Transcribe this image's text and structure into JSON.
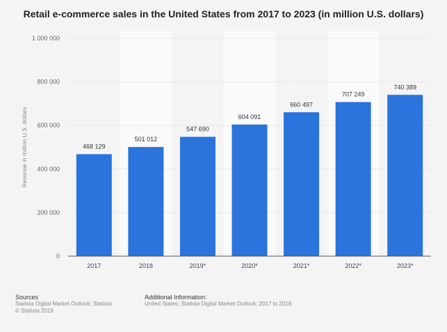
{
  "chart_data": {
    "type": "bar",
    "title": "Retail e-commerce sales in the United States from 2017 to 2023 (in million U.S. dollars)",
    "xlabel": "",
    "ylabel": "Revenue in million U.S. dollars",
    "categories": [
      "2017",
      "2018",
      "2019*",
      "2020*",
      "2021*",
      "2022*",
      "2023*"
    ],
    "values": [
      468129,
      501012,
      547690,
      604091,
      660497,
      707249,
      740389
    ],
    "data_labels": [
      "468 129",
      "501 012",
      "547 690",
      "604 091",
      "660 497",
      "707 249",
      "740 389"
    ],
    "ylim": [
      0,
      1000000
    ],
    "yticks": [
      0,
      200000,
      400000,
      600000,
      800000,
      1000000
    ],
    "ytick_labels": [
      "0",
      "200 000",
      "400 000",
      "600 000",
      "800 000",
      "1 000 000"
    ],
    "grid": true,
    "legend": "none",
    "bar_color": "#2a74dc"
  },
  "footer": {
    "sources_heading": "Sources",
    "sources_text": "Statista Digital Market Outlook; Statista",
    "copyright": "© Statista 2019",
    "additional_heading": "Additional Information:",
    "additional_text": "United States; Statista Digital Market Outlook; 2017 to 2018"
  }
}
